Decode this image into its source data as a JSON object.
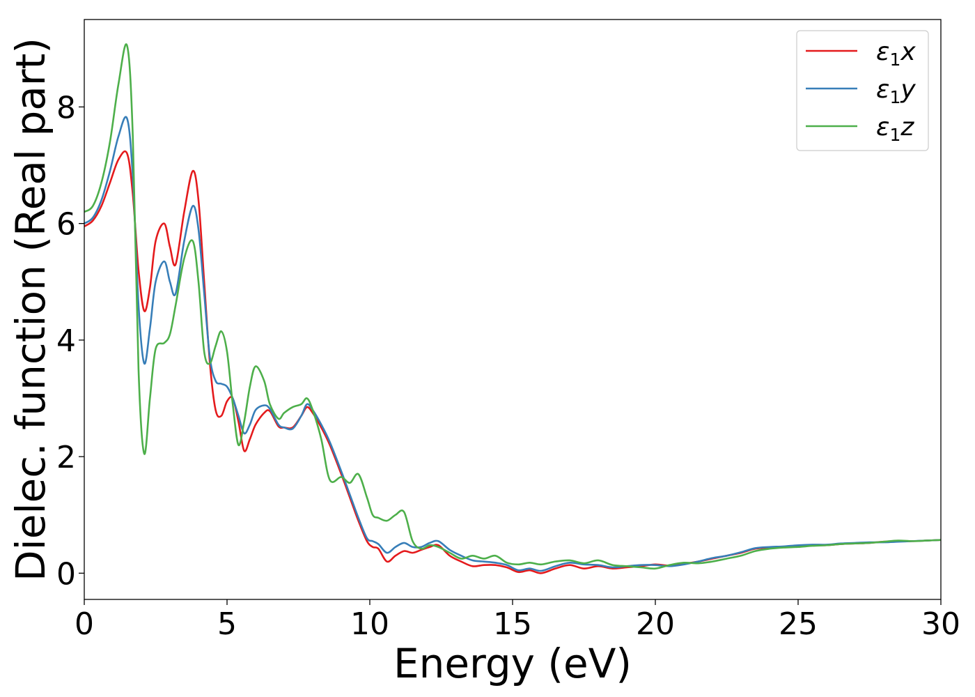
{
  "chart_data": {
    "type": "line",
    "xlabel": "Energy (eV)",
    "ylabel": "Dielec. function (Real part)",
    "xlim": [
      0,
      30
    ],
    "ylim": [
      -0.45,
      9.5
    ],
    "xticks": [
      0,
      5,
      10,
      15,
      20,
      25,
      30
    ],
    "yticks": [
      0,
      2,
      4,
      6,
      8
    ],
    "grid": false,
    "legend_position": "top-right",
    "series": [
      {
        "name_base": "ε",
        "name_sub": "1",
        "name_var": "x",
        "color": "#e41a1c",
        "x": [
          0,
          0.3,
          0.6,
          0.9,
          1.2,
          1.5,
          1.7,
          1.9,
          2.1,
          2.3,
          2.5,
          2.8,
          3.0,
          3.2,
          3.5,
          3.8,
          4.0,
          4.2,
          4.4,
          4.6,
          4.8,
          5.0,
          5.2,
          5.4,
          5.6,
          5.8,
          6.0,
          6.3,
          6.5,
          6.8,
          7.0,
          7.3,
          7.6,
          7.8,
          8.0,
          8.3,
          8.6,
          9.0,
          9.3,
          9.6,
          9.9,
          10.1,
          10.3,
          10.6,
          10.9,
          11.2,
          11.5,
          11.8,
          12.1,
          12.4,
          12.8,
          13.2,
          13.6,
          14.0,
          14.4,
          14.8,
          15.2,
          15.6,
          16.0,
          16.5,
          17.0,
          17.5,
          18.0,
          18.5,
          19.0,
          19.5,
          20.0,
          20.5,
          21.0,
          21.5,
          22.0,
          22.5,
          23.0,
          23.5,
          24.0,
          24.5,
          25.0,
          25.5,
          26.0,
          26.5,
          27.0,
          27.5,
          28.0,
          28.5,
          29.0,
          29.5,
          30.0
        ],
        "y": [
          5.95,
          6.05,
          6.3,
          6.7,
          7.1,
          7.2,
          6.5,
          5.2,
          4.5,
          4.9,
          5.7,
          6.0,
          5.6,
          5.3,
          6.2,
          6.9,
          6.4,
          5.0,
          3.6,
          2.8,
          2.7,
          2.95,
          3.0,
          2.6,
          2.1,
          2.3,
          2.55,
          2.75,
          2.78,
          2.52,
          2.5,
          2.5,
          2.7,
          2.85,
          2.75,
          2.5,
          2.2,
          1.7,
          1.3,
          0.9,
          0.55,
          0.45,
          0.42,
          0.2,
          0.3,
          0.38,
          0.35,
          0.4,
          0.45,
          0.48,
          0.3,
          0.2,
          0.12,
          0.14,
          0.14,
          0.1,
          0.02,
          0.05,
          0.0,
          0.08,
          0.14,
          0.08,
          0.12,
          0.08,
          0.1,
          0.12,
          0.15,
          0.13,
          0.16,
          0.2,
          0.25,
          0.3,
          0.35,
          0.42,
          0.44,
          0.45,
          0.47,
          0.48,
          0.48,
          0.5,
          0.51,
          0.52,
          0.54,
          0.55,
          0.55,
          0.56,
          0.57
        ]
      },
      {
        "name_base": "ε",
        "name_sub": "1",
        "name_var": "y",
        "color": "#377eb8",
        "x": [
          0,
          0.3,
          0.6,
          0.9,
          1.2,
          1.5,
          1.7,
          1.9,
          2.1,
          2.3,
          2.5,
          2.8,
          3.0,
          3.2,
          3.5,
          3.8,
          4.0,
          4.2,
          4.4,
          4.6,
          4.8,
          5.0,
          5.2,
          5.4,
          5.6,
          5.8,
          6.0,
          6.3,
          6.5,
          6.8,
          7.0,
          7.3,
          7.6,
          7.8,
          8.0,
          8.3,
          8.6,
          9.0,
          9.3,
          9.6,
          9.9,
          10.1,
          10.3,
          10.6,
          10.9,
          11.2,
          11.5,
          11.8,
          12.1,
          12.4,
          12.8,
          13.2,
          13.6,
          14.0,
          14.4,
          14.8,
          15.2,
          15.6,
          16.0,
          16.5,
          17.0,
          17.5,
          18.0,
          18.5,
          19.0,
          19.5,
          20.0,
          20.5,
          21.0,
          21.5,
          22.0,
          22.5,
          23.0,
          23.5,
          24.0,
          24.5,
          25.0,
          25.5,
          26.0,
          26.5,
          27.0,
          27.5,
          28.0,
          28.5,
          29.0,
          29.5,
          30.0
        ],
        "y": [
          6.0,
          6.1,
          6.4,
          6.9,
          7.5,
          7.8,
          6.8,
          4.6,
          3.6,
          4.2,
          5.0,
          5.35,
          5.0,
          4.8,
          5.7,
          6.3,
          5.9,
          4.8,
          3.7,
          3.3,
          3.25,
          3.2,
          3.0,
          2.7,
          2.4,
          2.55,
          2.8,
          2.88,
          2.82,
          2.55,
          2.5,
          2.48,
          2.7,
          2.9,
          2.8,
          2.55,
          2.25,
          1.75,
          1.35,
          0.95,
          0.6,
          0.55,
          0.5,
          0.35,
          0.45,
          0.52,
          0.45,
          0.45,
          0.52,
          0.55,
          0.4,
          0.3,
          0.22,
          0.2,
          0.18,
          0.14,
          0.05,
          0.08,
          0.04,
          0.12,
          0.18,
          0.15,
          0.14,
          0.1,
          0.12,
          0.14,
          0.14,
          0.12,
          0.15,
          0.2,
          0.26,
          0.3,
          0.36,
          0.43,
          0.45,
          0.46,
          0.48,
          0.49,
          0.49,
          0.51,
          0.52,
          0.53,
          0.53,
          0.54,
          0.55,
          0.56,
          0.57
        ]
      },
      {
        "name_base": "ε",
        "name_sub": "1",
        "name_var": "z",
        "color": "#4daf4a",
        "x": [
          0,
          0.3,
          0.6,
          0.9,
          1.2,
          1.5,
          1.7,
          1.9,
          2.1,
          2.3,
          2.5,
          2.8,
          3.0,
          3.2,
          3.5,
          3.8,
          4.0,
          4.2,
          4.4,
          4.6,
          4.8,
          5.0,
          5.2,
          5.4,
          5.6,
          5.8,
          6.0,
          6.3,
          6.5,
          6.8,
          7.0,
          7.3,
          7.6,
          7.8,
          8.0,
          8.3,
          8.6,
          9.0,
          9.3,
          9.6,
          9.9,
          10.1,
          10.3,
          10.6,
          10.9,
          11.2,
          11.5,
          11.8,
          12.1,
          12.4,
          12.8,
          13.2,
          13.6,
          14.0,
          14.4,
          14.8,
          15.2,
          15.6,
          16.0,
          16.5,
          17.0,
          17.5,
          18.0,
          18.5,
          19.0,
          19.5,
          20.0,
          20.5,
          21.0,
          21.5,
          22.0,
          22.5,
          23.0,
          23.5,
          24.0,
          24.5,
          25.0,
          25.5,
          26.0,
          26.5,
          27.0,
          27.5,
          28.0,
          28.5,
          29.0,
          29.5,
          30.0
        ],
        "y": [
          6.2,
          6.3,
          6.7,
          7.4,
          8.4,
          9.05,
          7.5,
          3.5,
          2.05,
          3.0,
          3.85,
          3.95,
          4.1,
          4.6,
          5.4,
          5.7,
          5.0,
          3.8,
          3.6,
          3.9,
          4.15,
          3.8,
          2.9,
          2.2,
          2.6,
          3.2,
          3.55,
          3.3,
          2.9,
          2.65,
          2.75,
          2.85,
          2.9,
          3.0,
          2.8,
          2.3,
          1.6,
          1.65,
          1.55,
          1.7,
          1.3,
          1.0,
          0.95,
          0.9,
          1.0,
          1.05,
          0.55,
          0.42,
          0.48,
          0.45,
          0.35,
          0.25,
          0.3,
          0.25,
          0.3,
          0.18,
          0.15,
          0.18,
          0.15,
          0.2,
          0.22,
          0.17,
          0.22,
          0.14,
          0.12,
          0.1,
          0.08,
          0.14,
          0.18,
          0.17,
          0.2,
          0.25,
          0.3,
          0.38,
          0.42,
          0.44,
          0.45,
          0.47,
          0.48,
          0.5,
          0.51,
          0.52,
          0.54,
          0.56,
          0.55,
          0.56,
          0.57
        ]
      }
    ]
  }
}
